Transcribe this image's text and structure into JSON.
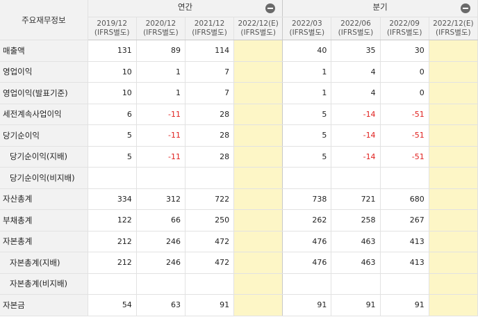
{
  "header": {
    "corner_label": "주요재무정보",
    "annual_label": "연간",
    "quarter_label": "분기",
    "collapse_icon": "minus-circle-icon",
    "annual_periods": [
      {
        "date": "2019/12",
        "basis": "(IFRS별도)",
        "estimate": false
      },
      {
        "date": "2020/12",
        "basis": "(IFRS별도)",
        "estimate": false
      },
      {
        "date": "2021/12",
        "basis": "(IFRS별도)",
        "estimate": false
      },
      {
        "date": "2022/12(E)",
        "basis": "(IFRS별도)",
        "estimate": true
      }
    ],
    "quarter_periods": [
      {
        "date": "2022/03",
        "basis": "(IFRS별도)",
        "estimate": false
      },
      {
        "date": "2022/06",
        "basis": "(IFRS별도)",
        "estimate": false
      },
      {
        "date": "2022/09",
        "basis": "(IFRS별도)",
        "estimate": false
      },
      {
        "date": "2022/12(E)",
        "basis": "(IFRS별도)",
        "estimate": true
      }
    ]
  },
  "colors": {
    "negative": "#e0201e",
    "estimate_bg": "#fdf6c6",
    "label_bg": "#f2f2f2"
  },
  "rows": [
    {
      "label": "매출액",
      "sub": false,
      "annual": [
        "131",
        "89",
        "114",
        ""
      ],
      "quarter": [
        "40",
        "35",
        "30",
        ""
      ]
    },
    {
      "label": "영업이익",
      "sub": false,
      "annual": [
        "10",
        "1",
        "7",
        ""
      ],
      "quarter": [
        "1",
        "4",
        "0",
        ""
      ]
    },
    {
      "label": "영업이익(발표기준)",
      "sub": false,
      "annual": [
        "10",
        "1",
        "7",
        ""
      ],
      "quarter": [
        "1",
        "4",
        "0",
        ""
      ]
    },
    {
      "label": "세전계속사업이익",
      "sub": false,
      "annual": [
        "6",
        "-11",
        "28",
        ""
      ],
      "quarter": [
        "5",
        "-14",
        "-51",
        ""
      ]
    },
    {
      "label": "당기순이익",
      "sub": false,
      "annual": [
        "5",
        "-11",
        "28",
        ""
      ],
      "quarter": [
        "5",
        "-14",
        "-51",
        ""
      ]
    },
    {
      "label": "당기순이익(지배)",
      "sub": true,
      "annual": [
        "5",
        "-11",
        "28",
        ""
      ],
      "quarter": [
        "5",
        "-14",
        "-51",
        ""
      ]
    },
    {
      "label": "당기순이익(비지배)",
      "sub": true,
      "annual": [
        "",
        "",
        "",
        ""
      ],
      "quarter": [
        "",
        "",
        "",
        ""
      ]
    },
    {
      "label": "자산총계",
      "sub": false,
      "annual": [
        "334",
        "312",
        "722",
        ""
      ],
      "quarter": [
        "738",
        "721",
        "680",
        ""
      ]
    },
    {
      "label": "부채총계",
      "sub": false,
      "annual": [
        "122",
        "66",
        "250",
        ""
      ],
      "quarter": [
        "262",
        "258",
        "267",
        ""
      ]
    },
    {
      "label": "자본총계",
      "sub": false,
      "annual": [
        "212",
        "246",
        "472",
        ""
      ],
      "quarter": [
        "476",
        "463",
        "413",
        ""
      ]
    },
    {
      "label": "자본총계(지배)",
      "sub": true,
      "annual": [
        "212",
        "246",
        "472",
        ""
      ],
      "quarter": [
        "476",
        "463",
        "413",
        ""
      ]
    },
    {
      "label": "자본총계(비지배)",
      "sub": true,
      "annual": [
        "",
        "",
        "",
        ""
      ],
      "quarter": [
        "",
        "",
        "",
        ""
      ]
    },
    {
      "label": "자본금",
      "sub": false,
      "annual": [
        "54",
        "63",
        "91",
        ""
      ],
      "quarter": [
        "91",
        "91",
        "91",
        ""
      ]
    }
  ]
}
